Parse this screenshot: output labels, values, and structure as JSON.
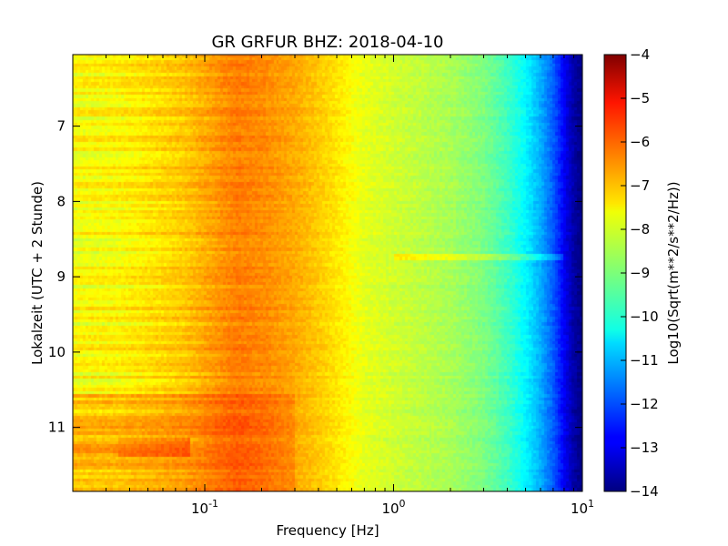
{
  "chart_data": {
    "type": "heatmap",
    "title": "GR GRFUR BHZ: 2018-04-10",
    "xlabel": "Frequency [Hz]",
    "ylabel": "Lokalzeit (UTC + 2 Stunde)",
    "x_scale": "log",
    "xlim": [
      0.02,
      10
    ],
    "x_ticks": [
      {
        "value": 0.1,
        "base": "10",
        "exp": "-1"
      },
      {
        "value": 1,
        "base": "10",
        "exp": "0"
      },
      {
        "value": 10,
        "base": "10",
        "exp": "1"
      }
    ],
    "ylim": [
      6.05,
      11.85
    ],
    "y_inverted": true,
    "y_ticks": [
      {
        "value": 7,
        "label": "7"
      },
      {
        "value": 8,
        "label": "8"
      },
      {
        "value": 9,
        "label": "9"
      },
      {
        "value": 10,
        "label": "10"
      },
      {
        "value": 11,
        "label": "11"
      }
    ],
    "colorbar": {
      "label": "Log10(Sqrt(m**2/s**2/Hz))",
      "range": [
        -14,
        -4
      ],
      "colormap": "jet",
      "ticks": [
        {
          "value": -4,
          "label": "−4"
        },
        {
          "value": -5,
          "label": "−5"
        },
        {
          "value": -6,
          "label": "−6"
        },
        {
          "value": -7,
          "label": "−7"
        },
        {
          "value": -8,
          "label": "−8"
        },
        {
          "value": -9,
          "label": "−9"
        },
        {
          "value": -10,
          "label": "−10"
        },
        {
          "value": -11,
          "label": "−11"
        },
        {
          "value": -12,
          "label": "−12"
        },
        {
          "value": -13,
          "label": "−13"
        },
        {
          "value": -14,
          "label": "−14"
        }
      ]
    },
    "freq_profile": [
      {
        "f": 0.02,
        "v": -7.8
      },
      {
        "f": 0.035,
        "v": -7.7
      },
      {
        "f": 0.05,
        "v": -7.5
      },
      {
        "f": 0.08,
        "v": -7.2
      },
      {
        "f": 0.12,
        "v": -6.7
      },
      {
        "f": 0.15,
        "v": -6.5
      },
      {
        "f": 0.2,
        "v": -6.6
      },
      {
        "f": 0.3,
        "v": -6.9
      },
      {
        "f": 0.5,
        "v": -7.5
      },
      {
        "f": 0.7,
        "v": -8.0
      },
      {
        "f": 1.0,
        "v": -8.2
      },
      {
        "f": 2.0,
        "v": -8.6
      },
      {
        "f": 3.0,
        "v": -9.0
      },
      {
        "f": 4.0,
        "v": -9.6
      },
      {
        "f": 5.0,
        "v": -10.3
      },
      {
        "f": 6.0,
        "v": -11.0
      },
      {
        "f": 7.0,
        "v": -11.8
      },
      {
        "f": 8.0,
        "v": -12.8
      },
      {
        "f": 9.0,
        "v": -13.6
      },
      {
        "f": 10.0,
        "v": -14.0
      }
    ]
  }
}
